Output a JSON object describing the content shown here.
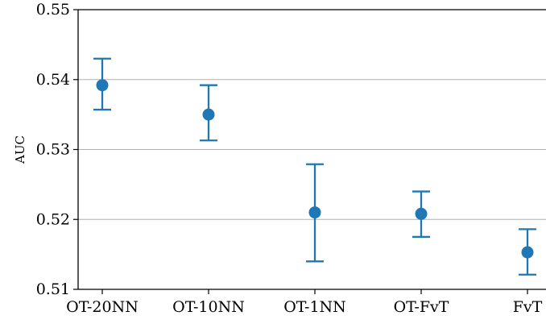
{
  "chart_data": {
    "type": "scatter",
    "title": "",
    "xlabel": "",
    "ylabel": "AUC",
    "categories": [
      "OT-20NN",
      "OT-10NN",
      "OT-1NN",
      "OT-FvT",
      "FvT"
    ],
    "series": [
      {
        "values": [
          0.5392,
          0.535,
          0.521,
          0.5208,
          0.5153
        ],
        "error_low": [
          0.5357,
          0.5313,
          0.514,
          0.5175,
          0.5121
        ],
        "error_high": [
          0.543,
          0.5392,
          0.5279,
          0.524,
          0.5186
        ]
      }
    ],
    "ylim": [
      0.51,
      0.55
    ],
    "yticks": [
      0.51,
      0.52,
      0.53,
      0.54,
      0.55
    ],
    "ytick_labels": [
      "0.51",
      "0.52",
      "0.53",
      "0.54",
      "0.55"
    ],
    "grid": "horizontal",
    "color": "#1f77b4"
  }
}
